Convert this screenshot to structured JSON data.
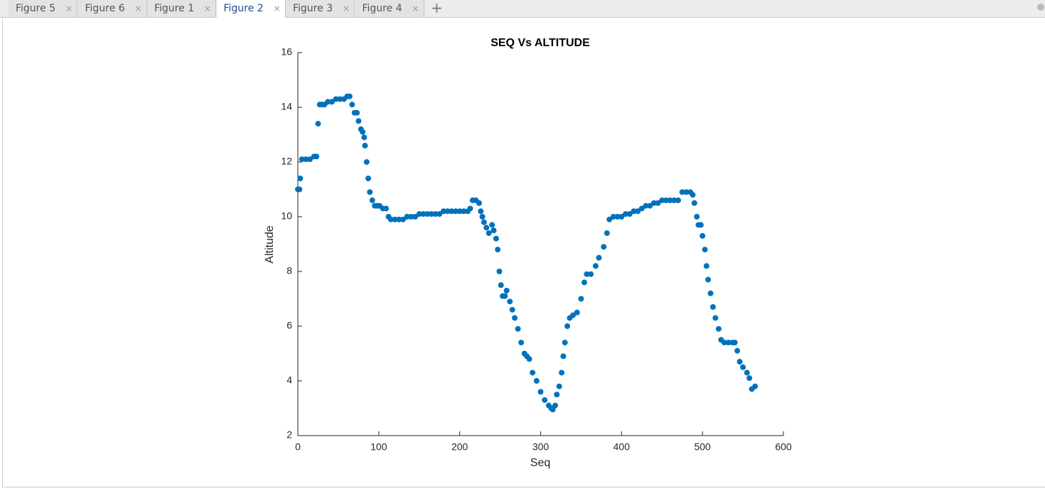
{
  "tabs": [
    "Figure 5",
    "Figure 6",
    "Figure 1",
    "Figure 2",
    "Figure 3",
    "Figure 4"
  ],
  "active_tab": 3,
  "chart_data": {
    "type": "scatter",
    "title": "SEQ Vs ALTITUDE",
    "x_label": "Seq",
    "y_label": "Altitude",
    "color": "#0072bd",
    "xlim": [
      0,
      600
    ],
    "xticks": [
      0,
      100,
      200,
      300,
      400,
      500,
      600
    ],
    "ylim": [
      2,
      16
    ],
    "yticks": [
      2,
      4,
      6,
      8,
      10,
      12,
      14,
      16
    ],
    "x": [
      0,
      2,
      3,
      5,
      10,
      15,
      20,
      23,
      25,
      27,
      30,
      33,
      37,
      42,
      47,
      52,
      57,
      61,
      64,
      67,
      70,
      73,
      75,
      78,
      80,
      82,
      83,
      85,
      87,
      89,
      92,
      95,
      98,
      101,
      105,
      109,
      112,
      115,
      120,
      125,
      130,
      135,
      140,
      145,
      150,
      155,
      160,
      165,
      170,
      175,
      180,
      185,
      190,
      195,
      200,
      205,
      210,
      213,
      216,
      220,
      224,
      226,
      228,
      230,
      233,
      236,
      240,
      242,
      245,
      247,
      249,
      251,
      253,
      256,
      258,
      262,
      265,
      268,
      272,
      276,
      280,
      283,
      286,
      290,
      295,
      300,
      305,
      310,
      313,
      315,
      318,
      320,
      323,
      326,
      328,
      330,
      333,
      336,
      340,
      345,
      350,
      354,
      357,
      362,
      368,
      372,
      378,
      382,
      385,
      390,
      395,
      400,
      405,
      410,
      415,
      420,
      425,
      430,
      435,
      440,
      445,
      450,
      455,
      460,
      465,
      470,
      475,
      480,
      485,
      488,
      490,
      493,
      495,
      498,
      500,
      503,
      505,
      507,
      510,
      513,
      516,
      520,
      523,
      527,
      532,
      537,
      540,
      543,
      546,
      550,
      555,
      558,
      561,
      565
    ],
    "values": [
      11.0,
      11.0,
      11.4,
      12.1,
      12.1,
      12.1,
      12.2,
      12.2,
      13.4,
      14.1,
      14.1,
      14.1,
      14.2,
      14.2,
      14.3,
      14.3,
      14.3,
      14.4,
      14.4,
      14.1,
      13.8,
      13.8,
      13.5,
      13.2,
      13.1,
      12.9,
      12.6,
      12.0,
      11.4,
      10.9,
      10.6,
      10.4,
      10.4,
      10.4,
      10.3,
      10.3,
      10.0,
      9.9,
      9.9,
      9.9,
      9.9,
      10.0,
      10.0,
      10.0,
      10.1,
      10.1,
      10.1,
      10.1,
      10.1,
      10.1,
      10.2,
      10.2,
      10.2,
      10.2,
      10.2,
      10.2,
      10.2,
      10.3,
      10.6,
      10.6,
      10.5,
      10.2,
      10.0,
      9.8,
      9.6,
      9.4,
      9.7,
      9.5,
      9.2,
      8.8,
      8.0,
      7.5,
      7.1,
      7.1,
      7.3,
      6.9,
      6.6,
      6.3,
      5.9,
      5.4,
      5.0,
      4.9,
      4.8,
      4.3,
      4.0,
      3.6,
      3.3,
      3.1,
      3.0,
      2.95,
      3.1,
      3.5,
      3.8,
      4.3,
      4.9,
      5.4,
      6.0,
      6.3,
      6.4,
      6.5,
      7.0,
      7.6,
      7.9,
      7.9,
      8.2,
      8.5,
      8.9,
      9.4,
      9.9,
      10.0,
      10.0,
      10.0,
      10.1,
      10.1,
      10.2,
      10.2,
      10.3,
      10.4,
      10.4,
      10.5,
      10.5,
      10.6,
      10.6,
      10.6,
      10.6,
      10.6,
      10.9,
      10.9,
      10.9,
      10.8,
      10.5,
      10.0,
      9.7,
      9.7,
      9.3,
      8.8,
      8.2,
      7.7,
      7.2,
      6.7,
      6.3,
      5.9,
      5.5,
      5.4,
      5.4,
      5.4,
      5.4,
      5.1,
      4.7,
      4.5,
      4.3,
      4.1,
      3.7,
      3.8
    ]
  }
}
